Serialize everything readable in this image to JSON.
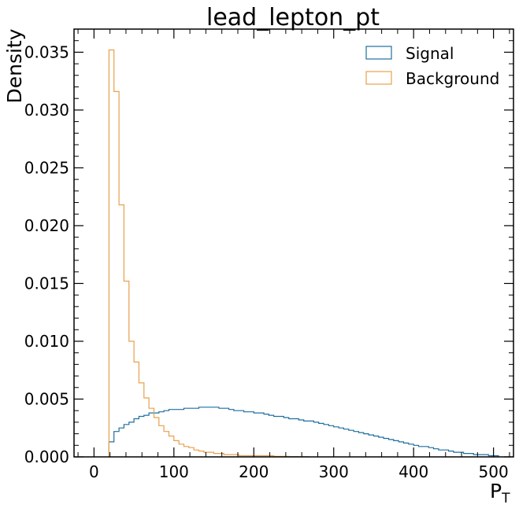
{
  "chart_data": {
    "type": "histogram",
    "title": "lead_lepton_pt",
    "xlabel": "P",
    "xlabel_sub": "T",
    "ylabel": "Density",
    "xlim": [
      -25,
      525
    ],
    "ylim": [
      0,
      0.037
    ],
    "x_ticks": [
      0,
      100,
      200,
      300,
      400,
      500
    ],
    "x_tick_labels": [
      "0",
      "100",
      "200",
      "300",
      "400",
      "500"
    ],
    "y_ticks": [
      0,
      0.005,
      0.01,
      0.015,
      0.02,
      0.025,
      0.03,
      0.035
    ],
    "y_tick_labels": [
      "0.000",
      "0.005",
      "0.010",
      "0.015",
      "0.020",
      "0.025",
      "0.030",
      "0.035"
    ],
    "legend_position": "top-right",
    "bin_width": 6.25,
    "series": [
      {
        "name": "Signal",
        "color": "#1f6f9e",
        "bin_start": 18.75,
        "values": [
          0.0013,
          0.0022,
          0.0025,
          0.0028,
          0.003,
          0.0033,
          0.0035,
          0.0036,
          0.0038,
          0.0038,
          0.0039,
          0.004,
          0.0041,
          0.0041,
          0.0041,
          0.0042,
          0.0042,
          0.0042,
          0.0043,
          0.0043,
          0.0043,
          0.0043,
          0.0042,
          0.0042,
          0.0041,
          0.004,
          0.004,
          0.0039,
          0.0039,
          0.0038,
          0.0038,
          0.0037,
          0.0036,
          0.0035,
          0.0035,
          0.0034,
          0.0033,
          0.0033,
          0.0032,
          0.0031,
          0.0031,
          0.003,
          0.0029,
          0.0028,
          0.0027,
          0.0026,
          0.0025,
          0.0024,
          0.0023,
          0.0022,
          0.0021,
          0.002,
          0.0019,
          0.0018,
          0.0017,
          0.0016,
          0.0015,
          0.0014,
          0.0013,
          0.0012,
          0.0011,
          0.001,
          0.0009,
          0.0009,
          0.0008,
          0.0007,
          0.0006,
          0.0006,
          0.0005,
          0.0004,
          0.0004,
          0.0003,
          0.0003,
          0.0002,
          0.0002,
          0.0002,
          0.0001,
          0.0001
        ]
      },
      {
        "name": "Background",
        "color": "#e8a04b",
        "bin_start": 18.75,
        "values": [
          0.0352,
          0.0316,
          0.0218,
          0.0152,
          0.01,
          0.0082,
          0.0064,
          0.0051,
          0.0042,
          0.0034,
          0.0027,
          0.0022,
          0.0018,
          0.0014,
          0.0011,
          0.0009,
          0.0008,
          0.0006,
          0.0005,
          0.0004,
          0.0004,
          0.0003,
          0.0003,
          0.0002,
          0.0002,
          0.0002,
          0.0001,
          0.0001,
          0.0001,
          0.0001,
          0.0001,
          0.0001,
          0.0001,
          5e-05,
          5e-05,
          5e-05,
          3e-05,
          3e-05,
          2e-05,
          2e-05
        ]
      }
    ]
  }
}
